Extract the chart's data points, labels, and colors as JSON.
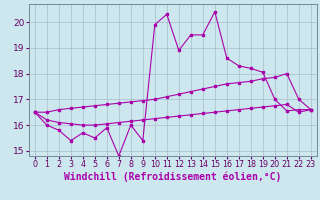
{
  "background_color": "#cce8ee",
  "grid_color": "#aabbcc",
  "line_color": "#aa00aa",
  "xlim": [
    -0.5,
    23.5
  ],
  "ylim": [
    14.8,
    20.7
  ],
  "yticks": [
    15,
    16,
    17,
    18,
    19,
    20
  ],
  "xticks": [
    0,
    1,
    2,
    3,
    4,
    5,
    6,
    7,
    8,
    9,
    10,
    11,
    12,
    13,
    14,
    15,
    16,
    17,
    18,
    19,
    20,
    21,
    22,
    23
  ],
  "xlabel": "Windchill (Refroidissement éolien,°C)",
  "xlabel_fontsize": 7.0,
  "ytick_fontsize": 6.5,
  "xtick_fontsize": 5.8,
  "s1_x": [
    0,
    1,
    2,
    3,
    4,
    5,
    6,
    7,
    8,
    9,
    10,
    11,
    12,
    13,
    14,
    15,
    16,
    17,
    18,
    19,
    20,
    21,
    22,
    23
  ],
  "s1_y": [
    16.5,
    16.0,
    15.8,
    15.4,
    15.7,
    15.5,
    15.9,
    14.8,
    16.0,
    15.4,
    19.9,
    20.3,
    18.9,
    19.5,
    19.5,
    20.4,
    18.6,
    18.3,
    18.2,
    18.05,
    17.0,
    16.55,
    16.6,
    16.6
  ],
  "s2_x": [
    0,
    1,
    2,
    3,
    4,
    5,
    6,
    7,
    8,
    9,
    10,
    11,
    12,
    13,
    14,
    15,
    16,
    17,
    18,
    19,
    20,
    21,
    22,
    23
  ],
  "s2_y": [
    16.5,
    16.5,
    16.6,
    16.65,
    16.7,
    16.75,
    16.8,
    16.85,
    16.9,
    16.95,
    17.0,
    17.1,
    17.2,
    17.3,
    17.4,
    17.5,
    17.6,
    17.65,
    17.7,
    17.8,
    17.85,
    18.0,
    17.0,
    16.6
  ],
  "s3_x": [
    0,
    1,
    2,
    3,
    4,
    5,
    6,
    7,
    8,
    9,
    10,
    11,
    12,
    13,
    14,
    15,
    16,
    17,
    18,
    19,
    20,
    21,
    22,
    23
  ],
  "s3_y": [
    16.5,
    16.2,
    16.1,
    16.05,
    16.0,
    16.0,
    16.05,
    16.1,
    16.15,
    16.2,
    16.25,
    16.3,
    16.35,
    16.4,
    16.45,
    16.5,
    16.55,
    16.6,
    16.65,
    16.7,
    16.75,
    16.8,
    16.5,
    16.6
  ]
}
